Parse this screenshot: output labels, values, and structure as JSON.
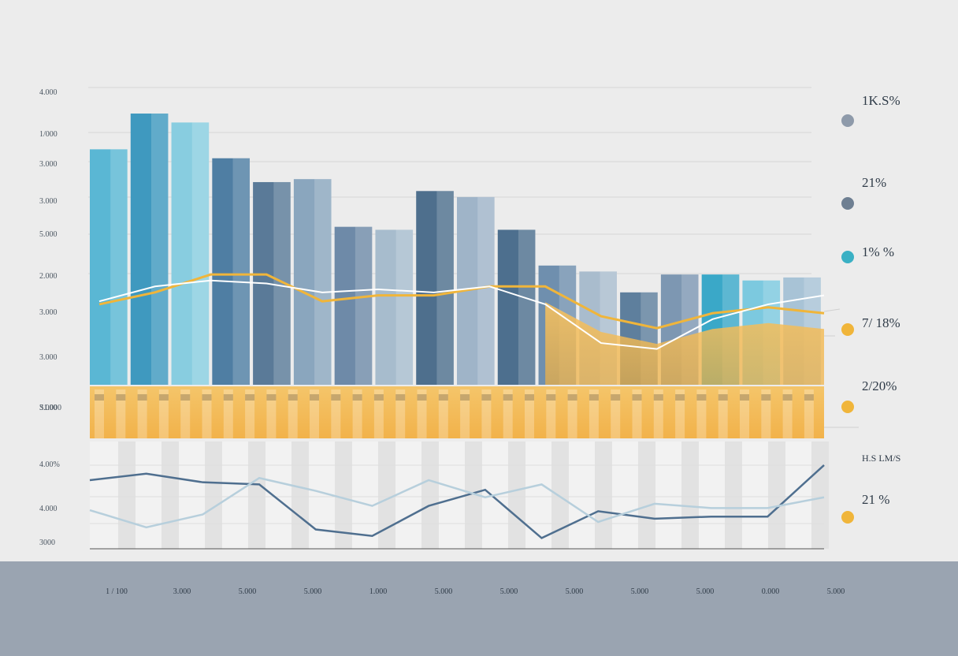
{
  "chart_data": {
    "type": "bar",
    "y_axis_labels": [
      "4.000",
      "1/000",
      "3.000",
      "3.000",
      "5.000",
      "2.000",
      "3.000",
      "3.000",
      "3.000",
      "4.00%",
      "4.000",
      "3000"
    ],
    "bars": [
      {
        "value": 79,
        "color": "#5ab7d4"
      },
      {
        "value": 91,
        "color": "#3f99bf"
      },
      {
        "value": 88,
        "color": "#88cde0"
      },
      {
        "value": 76,
        "color": "#4f7ea3"
      },
      {
        "value": 68,
        "color": "#5a7a98"
      },
      {
        "value": 69,
        "color": "#8aa6be"
      },
      {
        "value": 53,
        "color": "#6e8aa8"
      },
      {
        "value": 52,
        "color": "#a7bccd"
      },
      {
        "value": 65,
        "color": "#4e6f8d"
      },
      {
        "value": 63,
        "color": "#9fb4c8"
      },
      {
        "value": 52,
        "color": "#4d6f8e"
      },
      {
        "value": 40,
        "color": "#6f8fae"
      },
      {
        "value": 38,
        "color": "#a9bccd"
      },
      {
        "value": 31,
        "color": "#5e7f9d"
      },
      {
        "value": 37,
        "color": "#7d97b2"
      },
      {
        "value": 37,
        "color": "#3aa8c8"
      },
      {
        "value": 35,
        "color": "#7cc9df"
      },
      {
        "value": 36,
        "color": "#a8c3d6"
      }
    ],
    "lines": [
      {
        "color": "#f0b53a",
        "values": [
          27,
          31,
          37,
          37,
          28,
          30,
          30,
          33,
          33,
          23,
          19,
          24,
          26,
          24
        ]
      },
      {
        "color": "#ffffff",
        "values": [
          28,
          33,
          35,
          34,
          31,
          32,
          31,
          33,
          27,
          14,
          12,
          22,
          27,
          30
        ]
      }
    ],
    "lower_lines": [
      {
        "color": "#4f6f8f",
        "values": [
          64,
          70,
          62,
          60,
          18,
          12,
          40,
          55,
          10,
          35,
          28,
          30,
          30,
          78
        ]
      },
      {
        "color": "#b7cfdc",
        "values": [
          36,
          20,
          32,
          66,
          54,
          40,
          64,
          48,
          60,
          25,
          42,
          38,
          38,
          48
        ]
      }
    ],
    "legend": [
      {
        "pct": "1K.S%",
        "color": "#8e9aaa"
      },
      {
        "pct": "21%",
        "color": "#6e7f92"
      },
      {
        "pct": "1% %",
        "color": "#3ab0c4"
      },
      {
        "pct": "7/ 18%",
        "color": "#f0b53a"
      },
      {
        "pct": "2/20%",
        "color": "#f0b53a"
      },
      {
        "pct": "H.S LM/S",
        "color": ""
      },
      {
        "pct": "21 %",
        "color": "#f0b53a"
      }
    ]
  },
  "strip_label": "S1.000",
  "footer_headers": [
    "",
    "1 / 100",
    "3.000",
    "5.000",
    "5.000",
    "1.000",
    "5.000",
    "5.000",
    "5.000",
    "5.000",
    "5.000",
    "0.000",
    "5.000",
    ""
  ]
}
